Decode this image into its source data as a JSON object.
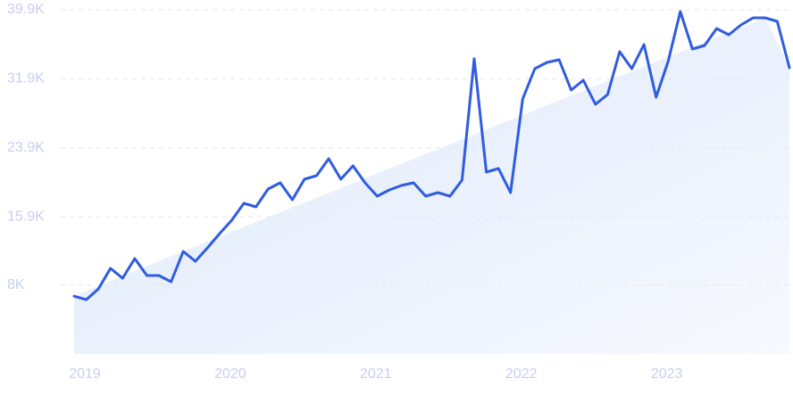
{
  "chart_data": {
    "type": "line",
    "categories": [
      "2019",
      null,
      null,
      null,
      null,
      null,
      null,
      null,
      null,
      null,
      null,
      null,
      "2020",
      null,
      null,
      null,
      null,
      null,
      null,
      null,
      null,
      null,
      null,
      null,
      "2021",
      null,
      null,
      null,
      null,
      null,
      null,
      null,
      null,
      null,
      null,
      null,
      "2022",
      null,
      null,
      null,
      null,
      null,
      null,
      null,
      null,
      null,
      null,
      null,
      "2023",
      null,
      null,
      null,
      null,
      null,
      null,
      null,
      null,
      null,
      null,
      null
    ],
    "values": [
      6700,
      6300,
      7550,
      9920,
      8790,
      11060,
      9100,
      9100,
      8370,
      11890,
      10750,
      12300,
      13950,
      15510,
      17470,
      17060,
      19120,
      19850,
      17880,
      20260,
      20670,
      22640,
      20260,
      21810,
      19850,
      18300,
      19020,
      19540,
      19850,
      18300,
      18710,
      18300,
      20160,
      34220,
      21090,
      21500,
      18710,
      29560,
      33080,
      33800,
      34110,
      30600,
      31730,
      28940,
      30080,
      35040,
      33080,
      35870,
      29770,
      33910,
      39690,
      35350,
      35770,
      37730,
      37010,
      38140,
      38970,
      38970,
      38560,
      33180
    ],
    "color": "#2f5ce0",
    "ylim": [
      0,
      39900
    ],
    "yticks": [
      {
        "value": 8000,
        "label": "8K"
      },
      {
        "value": 15900,
        "label": "15.9K"
      },
      {
        "value": 23900,
        "label": "23.9K"
      },
      {
        "value": 31900,
        "label": "31.9K"
      },
      {
        "value": 39900,
        "label": "39.9K"
      }
    ],
    "grid": true
  }
}
